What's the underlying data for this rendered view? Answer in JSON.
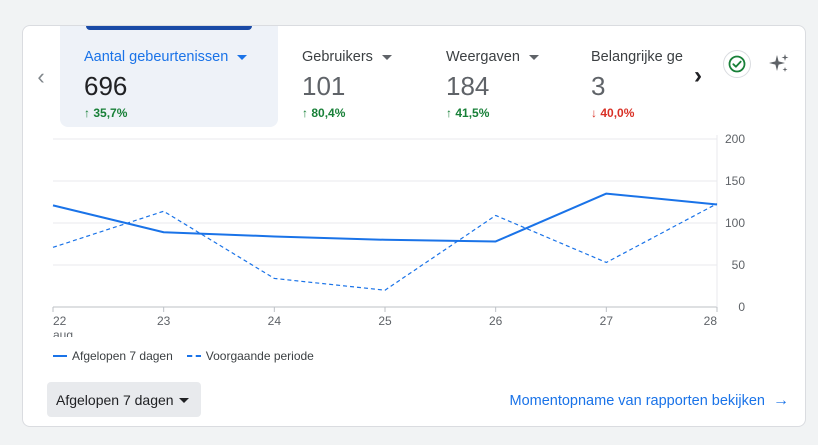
{
  "tabs": [
    {
      "label": "Aantal gebeurtenissen",
      "value": "696",
      "change": "35,7%",
      "direction": "up",
      "arrow": "↑"
    },
    {
      "label": "Gebruikers",
      "value": "101",
      "change": "80,4%",
      "direction": "up",
      "arrow": "↑"
    },
    {
      "label": "Weergaven",
      "value": "184",
      "change": "41,5%",
      "direction": "up",
      "arrow": "↑"
    },
    {
      "label": "Belangrijke gebeurtenissen",
      "value": "3",
      "change": "40,0%",
      "direction": "down",
      "arrow": "↓"
    }
  ],
  "icons": {
    "prev": "chevron-left-icon",
    "next": "chevron-right-icon",
    "check": "check-circle-icon",
    "insights": "sparkle-icon"
  },
  "chart_data": {
    "type": "line",
    "categories": [
      "22",
      "23",
      "24",
      "25",
      "26",
      "27",
      "28"
    ],
    "month_label": "aug",
    "ylim": [
      0,
      200
    ],
    "yticks": [
      "0",
      "50",
      "100",
      "150",
      "200"
    ],
    "series": [
      {
        "name": "Afgelopen 7 dagen",
        "style": "solid",
        "values": [
          121,
          89,
          84,
          80,
          78,
          135,
          122
        ]
      },
      {
        "name": "Voorgaande periode",
        "style": "dashed",
        "values": [
          71,
          114,
          34,
          20,
          109,
          53,
          123
        ]
      }
    ],
    "grid": true
  },
  "legend": [
    {
      "label": "Afgelopen 7 dagen",
      "style": "solid"
    },
    {
      "label": "Voorgaande periode",
      "style": "dashed"
    }
  ],
  "footer": {
    "range_label": "Afgelopen 7 dagen",
    "report_link": "Momentopname van rapporten bekijken",
    "report_arrow": "→"
  },
  "colors": {
    "accent": "#1a73e8",
    "up": "#188038",
    "down": "#d93025",
    "check": "#188038"
  }
}
